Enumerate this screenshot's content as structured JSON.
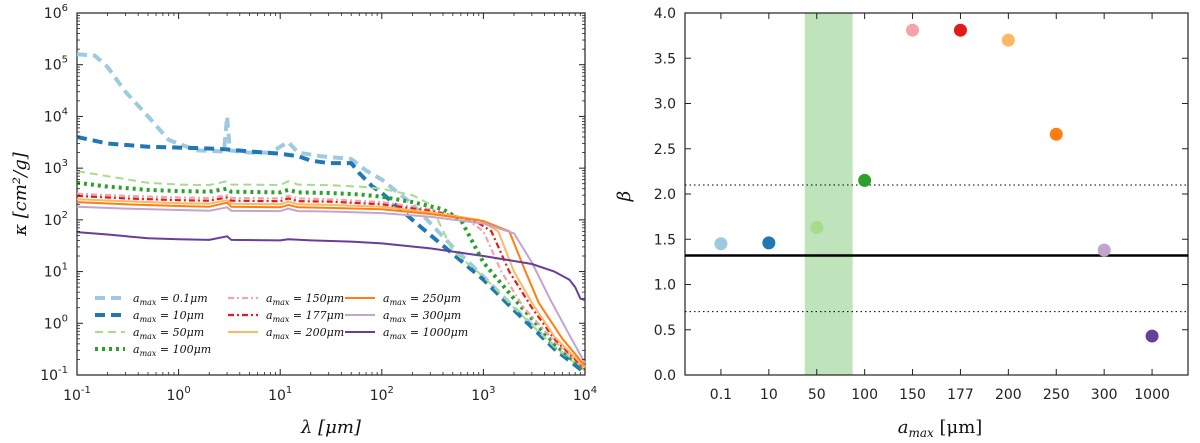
{
  "chart_data": [
    {
      "type": "line",
      "xscale": "log",
      "yscale": "log",
      "xlim": [
        0.1,
        10000
      ],
      "ylim": [
        0.1,
        1000000
      ],
      "xlabel": "λ [μm]",
      "ylabel": "κ [cm²/g]",
      "x_ticks": [
        {
          "value": 0.1,
          "mant": "10",
          "exp": "-1"
        },
        {
          "value": 1,
          "mant": "10",
          "exp": "0"
        },
        {
          "value": 10,
          "mant": "10",
          "exp": "1"
        },
        {
          "value": 100,
          "mant": "10",
          "exp": "2"
        },
        {
          "value": 1000,
          "mant": "10",
          "exp": "3"
        },
        {
          "value": 10000,
          "mant": "10",
          "exp": "4"
        }
      ],
      "y_ticks": [
        {
          "value": 0.1,
          "mant": "10",
          "exp": "-1"
        },
        {
          "value": 1,
          "mant": "10",
          "exp": "0"
        },
        {
          "value": 10,
          "mant": "10",
          "exp": "1"
        },
        {
          "value": 100,
          "mant": "10",
          "exp": "2"
        },
        {
          "value": 1000,
          "mant": "10",
          "exp": "3"
        },
        {
          "value": 10000,
          "mant": "10",
          "exp": "4"
        },
        {
          "value": 100000,
          "mant": "10",
          "exp": "5"
        },
        {
          "value": 1000000,
          "mant": "10",
          "exp": "6"
        }
      ],
      "series": [
        {
          "name": "a_max = 0.1μm",
          "label_prefix": "a",
          "label_sub": "max",
          "label_value": " = 0.1μm",
          "color": "#9ecae1",
          "style": "dashed-thick",
          "points": [
            [
              0.1,
              160000
            ],
            [
              0.15,
              150000
            ],
            [
              0.2,
              90000
            ],
            [
              0.3,
              30000
            ],
            [
              0.5,
              10000
            ],
            [
              0.8,
              3500
            ],
            [
              1.5,
              2200
            ],
            [
              2.8,
              2100
            ],
            [
              3.0,
              10000
            ],
            [
              3.2,
              2200
            ],
            [
              5,
              2000
            ],
            [
              8,
              2000
            ],
            [
              12,
              3200
            ],
            [
              15,
              2000
            ],
            [
              25,
              1700
            ],
            [
              50,
              1500
            ],
            [
              70,
              900
            ],
            [
              100,
              600
            ],
            [
              200,
              200
            ],
            [
              500,
              30
            ],
            [
              1000,
              8
            ],
            [
              2000,
              2
            ],
            [
              5000,
              0.35
            ],
            [
              10000,
              0.12
            ]
          ]
        },
        {
          "name": "a_max = 10μm",
          "label_prefix": "a",
          "label_sub": "max",
          "label_value": " = 10μm",
          "color": "#1f78b4",
          "style": "dashed-thick",
          "points": [
            [
              0.1,
              4000
            ],
            [
              0.2,
              3000
            ],
            [
              0.5,
              2600
            ],
            [
              1,
              2500
            ],
            [
              2,
              2400
            ],
            [
              3,
              2300
            ],
            [
              5,
              2100
            ],
            [
              10,
              1900
            ],
            [
              15,
              1700
            ],
            [
              20,
              1400
            ],
            [
              30,
              1250
            ],
            [
              50,
              1250
            ],
            [
              60,
              800
            ],
            [
              80,
              450
            ],
            [
              100,
              330
            ],
            [
              200,
              100
            ],
            [
              500,
              22
            ],
            [
              1000,
              7
            ],
            [
              2000,
              1.8
            ],
            [
              5000,
              0.32
            ],
            [
              10000,
              0.11
            ]
          ]
        },
        {
          "name": "a_max = 50μm",
          "label_prefix": "a",
          "label_sub": "max",
          "label_value": " = 50μm",
          "color": "#a6dc8c",
          "style": "dashed",
          "points": [
            [
              0.1,
              880
            ],
            [
              0.2,
              700
            ],
            [
              0.5,
              520
            ],
            [
              1,
              480
            ],
            [
              2,
              470
            ],
            [
              3,
              560
            ],
            [
              3.3,
              480
            ],
            [
              5,
              480
            ],
            [
              10,
              470
            ],
            [
              12,
              560
            ],
            [
              15,
              480
            ],
            [
              30,
              470
            ],
            [
              60,
              440
            ],
            [
              100,
              400
            ],
            [
              200,
              300
            ],
            [
              300,
              200
            ],
            [
              500,
              25
            ],
            [
              1000,
              8
            ],
            [
              2000,
              2
            ],
            [
              5000,
              0.35
            ],
            [
              10000,
              0.12
            ]
          ]
        },
        {
          "name": "a_max = 100μm",
          "label_prefix": "a",
          "label_sub": "max",
          "label_value": " = 100μm",
          "color": "#2ca02c",
          "style": "dotted-thick",
          "points": [
            [
              0.1,
              520
            ],
            [
              0.2,
              440
            ],
            [
              0.5,
              380
            ],
            [
              1,
              360
            ],
            [
              2,
              350
            ],
            [
              3,
              400
            ],
            [
              3.3,
              350
            ],
            [
              10,
              340
            ],
            [
              12,
              380
            ],
            [
              15,
              340
            ],
            [
              30,
              330
            ],
            [
              60,
              310
            ],
            [
              100,
              280
            ],
            [
              200,
              220
            ],
            [
              400,
              160
            ],
            [
              600,
              100
            ],
            [
              1000,
              15
            ],
            [
              2000,
              3
            ],
            [
              5000,
              0.4
            ],
            [
              10000,
              0.12
            ]
          ]
        },
        {
          "name": "a_max = 150μm",
          "label_prefix": "a",
          "label_sub": "max",
          "label_value": " = 150μm",
          "color": "#f4a3a8",
          "style": "dashdot",
          "points": [
            [
              0.1,
              320
            ],
            [
              0.3,
              290
            ],
            [
              1,
              270
            ],
            [
              2,
              265
            ],
            [
              3,
              300
            ],
            [
              3.3,
              265
            ],
            [
              10,
              260
            ],
            [
              12,
              290
            ],
            [
              15,
              260
            ],
            [
              30,
              250
            ],
            [
              100,
              220
            ],
            [
              300,
              160
            ],
            [
              700,
              100
            ],
            [
              1000,
              60
            ],
            [
              1500,
              10
            ],
            [
              2500,
              2
            ],
            [
              5000,
              0.45
            ],
            [
              10000,
              0.13
            ]
          ]
        },
        {
          "name": "a_max = 177μm",
          "label_prefix": "a",
          "label_sub": "max",
          "label_value": " = 177μm",
          "color": "#e31a1c",
          "style": "dashdot",
          "points": [
            [
              0.1,
              290
            ],
            [
              0.3,
              260
            ],
            [
              1,
              240
            ],
            [
              2,
              235
            ],
            [
              3,
              270
            ],
            [
              3.3,
              235
            ],
            [
              10,
              230
            ],
            [
              12,
              260
            ],
            [
              15,
              230
            ],
            [
              30,
              225
            ],
            [
              100,
              200
            ],
            [
              300,
              150
            ],
            [
              800,
              100
            ],
            [
              1200,
              60
            ],
            [
              1800,
              10
            ],
            [
              3000,
              2
            ],
            [
              5000,
              0.5
            ],
            [
              10000,
              0.13
            ]
          ]
        },
        {
          "name": "a_max = 200μm",
          "label_prefix": "a",
          "label_sub": "max",
          "label_value": " = 200μm",
          "color": "#fdb863",
          "style": "solid",
          "points": [
            [
              0.1,
              250
            ],
            [
              0.3,
              230
            ],
            [
              1,
              210
            ],
            [
              2,
              205
            ],
            [
              3,
              240
            ],
            [
              3.3,
              205
            ],
            [
              10,
              200
            ],
            [
              12,
              225
            ],
            [
              15,
              200
            ],
            [
              30,
              195
            ],
            [
              100,
              180
            ],
            [
              300,
              140
            ],
            [
              900,
              100
            ],
            [
              1400,
              60
            ],
            [
              2000,
              10
            ],
            [
              3000,
              2.5
            ],
            [
              5000,
              0.55
            ],
            [
              10000,
              0.14
            ]
          ]
        },
        {
          "name": "a_max = 250μm",
          "label_prefix": "a",
          "label_sub": "max",
          "label_value": " = 250μm",
          "color": "#ff7f0e",
          "style": "solid",
          "points": [
            [
              0.1,
              220
            ],
            [
              0.3,
              200
            ],
            [
              1,
              185
            ],
            [
              2,
              180
            ],
            [
              3,
              215
            ],
            [
              3.3,
              180
            ],
            [
              10,
              175
            ],
            [
              12,
              195
            ],
            [
              15,
              175
            ],
            [
              30,
              170
            ],
            [
              100,
              160
            ],
            [
              300,
              130
            ],
            [
              1000,
              95
            ],
            [
              1800,
              60
            ],
            [
              2500,
              12
            ],
            [
              3500,
              2.5
            ],
            [
              6000,
              0.5
            ],
            [
              10000,
              0.15
            ]
          ]
        },
        {
          "name": "a_max = 300μm",
          "label_prefix": "a",
          "label_sub": "max",
          "label_value": " = 300μm",
          "color": "#c2a5cf",
          "style": "solid",
          "points": [
            [
              0.1,
              180
            ],
            [
              0.3,
              165
            ],
            [
              1,
              155
            ],
            [
              2,
              150
            ],
            [
              3,
              175
            ],
            [
              3.3,
              150
            ],
            [
              10,
              148
            ],
            [
              12,
              165
            ],
            [
              15,
              148
            ],
            [
              30,
              145
            ],
            [
              100,
              135
            ],
            [
              300,
              115
            ],
            [
              1000,
              85
            ],
            [
              2000,
              55
            ],
            [
              3000,
              15
            ],
            [
              4500,
              3
            ],
            [
              7000,
              0.6
            ],
            [
              10000,
              0.17
            ]
          ]
        },
        {
          "name": "a_max = 1000μm",
          "label_prefix": "a",
          "label_sub": "max",
          "label_value": " = 1000μm",
          "color": "#6a3d9a",
          "style": "solid",
          "points": [
            [
              0.1,
              58
            ],
            [
              0.2,
              52
            ],
            [
              0.5,
              44
            ],
            [
              1,
              42
            ],
            [
              2,
              41
            ],
            [
              3,
              48
            ],
            [
              3.3,
              41
            ],
            [
              10,
              40
            ],
            [
              12,
              42
            ],
            [
              20,
              40
            ],
            [
              50,
              38
            ],
            [
              100,
              35
            ],
            [
              300,
              28
            ],
            [
              1000,
              20
            ],
            [
              2000,
              16
            ],
            [
              3000,
              14
            ],
            [
              5000,
              10
            ],
            [
              7000,
              7
            ],
            [
              8000,
              5
            ],
            [
              9000,
              3
            ],
            [
              10000,
              2.8
            ]
          ]
        }
      ]
    },
    {
      "type": "scatter",
      "xlabel_prefix": "a",
      "xlabel_sub": "max",
      "xlabel_suffix": " [μm]",
      "ylabel": "β",
      "ylim": [
        0.0,
        4.0
      ],
      "categories": [
        "0.1",
        "10",
        "50",
        "100",
        "150",
        "177",
        "200",
        "250",
        "300",
        "1000"
      ],
      "y_ticks": [
        "0.0",
        "0.5",
        "1.0",
        "1.5",
        "2.0",
        "2.5",
        "3.0",
        "3.5",
        "4.0"
      ],
      "points": [
        {
          "category": "0.1",
          "value": 1.45,
          "color": "#9ecae1"
        },
        {
          "category": "10",
          "value": 1.46,
          "color": "#1f78b4"
        },
        {
          "category": "50",
          "value": 1.63,
          "color": "#a6dc8c"
        },
        {
          "category": "100",
          "value": 2.15,
          "color": "#2ca02c"
        },
        {
          "category": "150",
          "value": 3.81,
          "color": "#f4a3a8"
        },
        {
          "category": "177",
          "value": 3.81,
          "color": "#e31a1c"
        },
        {
          "category": "200",
          "value": 3.7,
          "color": "#fdb863"
        },
        {
          "category": "250",
          "value": 2.66,
          "color": "#ff7f0e"
        },
        {
          "category": "300",
          "value": 1.38,
          "color": "#c2a5cf"
        },
        {
          "category": "1000",
          "value": 0.43,
          "color": "#6a3d9a"
        }
      ],
      "hline_mean": 1.32,
      "hline_bounds": [
        0.7,
        2.1
      ],
      "band_category_span": [
        1.75,
        2.75
      ],
      "band_color": "#bfe3bb"
    }
  ]
}
